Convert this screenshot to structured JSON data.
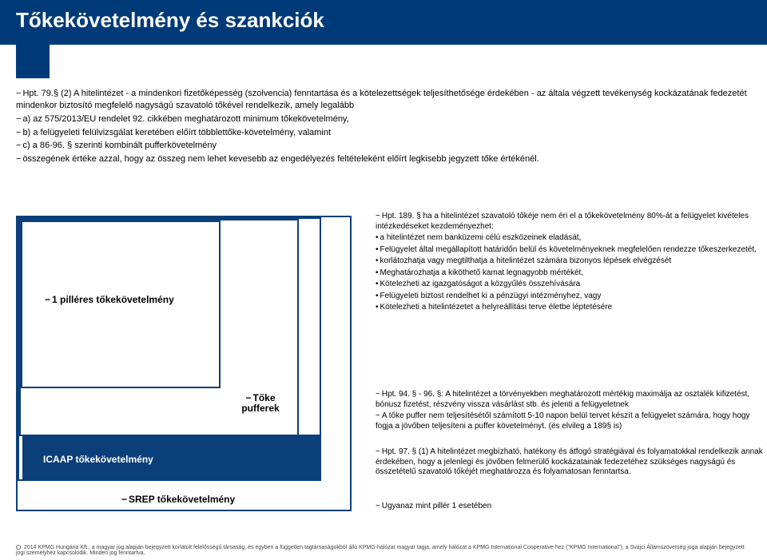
{
  "header": {
    "title": "Tőkekövetelmény és szankciók"
  },
  "intro": {
    "line1": "Hpt. 79.§ (2) A hitelintézet - a mindenkori fizetőképesség (szolvencia) fenntartása és a kötelezettségek teljesíthetősége érdekében - az általa végzett tevékenység kockázatának fedezetét mindenkor biztosító megfelelő nagyságú szavatoló tőkével rendelkezik, amely legalább",
    "line2": "a) az 575/2013/EU rendelet 92. cikkében meghatározott minimum tőkekövetelmény,",
    "line3": "b) a felügyeleti felülvizsgálat keretében előírt többlettőke-követelmény, valamint",
    "line4": "c) a 86-96. § szerinti kombinált pufferkövetelmény",
    "line5": "összegének értéke azzal, hogy az összeg nem lehet kevesebb az engedélyezés feltételeként előírt legkisebb jegyzett tőke értékénél."
  },
  "diagram": {
    "pillar_label": "1 pilléres  tőkekövetelmény",
    "puffer_label1": "Tőke",
    "puffer_label2": "pufferek",
    "icaap_label": "ICAAP tőkekövetelmény",
    "srep_label": "SREP tőkekövetelmény",
    "border_color": "#0b3f7a"
  },
  "side_top": {
    "h": "Hpt. 189. § ha a hitelintézet szavatoló tőkéje nem éri  el a tőkekövetelmény 80%-át a felügyelet kivételes intézkedéseket kezdeményezhet:",
    "b1": "a hitelintézet nem banküzemi célú eszközeinek eladását,",
    "b2": "Felügyelet által megállapított határidőn belül és követelményeknek megfelelően rendezze tőkeszerkezetét,",
    "b3": "korlátozhatja vagy megtilthatja a hitelintézet számára bizonyos lépések elvégzését",
    "b4": "Meghatározhatja a kiköthető kamat legnagyobb mértékét,",
    "b5": "Kötelezheti az igazgatóságot a közgyűlés összehívására",
    "b6": "Felügyeleti biztost rendelhet ki a pénzügyi intézményhez, vagy",
    "b7": "Kötelezheti a hitelintézetet a helyreállítási terve életbe léptetésére"
  },
  "side_mid": {
    "h": "Hpt. 94. § - 96. §: A hitelintézet a törvényekben meghatározott mértékig maximálja az osztalék kifizetést, bónusz fizetést, részvény vissza vásárlást stb. és jelenti a felügyeletnek",
    "p": "A tőke puffer nem teljesítésétől számított 5-10 napon belül tervet készít a felügyelet számára, hogy hogy fogja a jövőben teljesíteni a puffer követelményt. (és elvileg a 189§ is)"
  },
  "side_icaap": {
    "p": "Hpt. 97. § (1) A hitelintézet megbízható, hatékony és átfogó stratégiával és folyamatokkal rendelkezik annak érdekében, hogy a jelenlegi és jövőben felmerülő kockázatainak fedezetéhez szükséges nagyságú és összetételű szavatoló tőkéjét meghatározza és folyamatosan fenntartsa."
  },
  "side_srep": {
    "p": "Ugyanaz mint pillér 1 esetében"
  },
  "footer": {
    "text": "2014 KPMG Hungária Kft., a magyar jog alapján bejegyzett korlátolt felelősségű társaság, és egyben a független tagtársaságokból álló KPMG-hálózat magyar tagja, amely hálózat a KPMG International Cooperative-hez (\"KPMG International\"), a Svájci Államszövetség joga alapján bejegyzett jogi személyhez kapcsolódik. Minden jog fenntartva."
  }
}
